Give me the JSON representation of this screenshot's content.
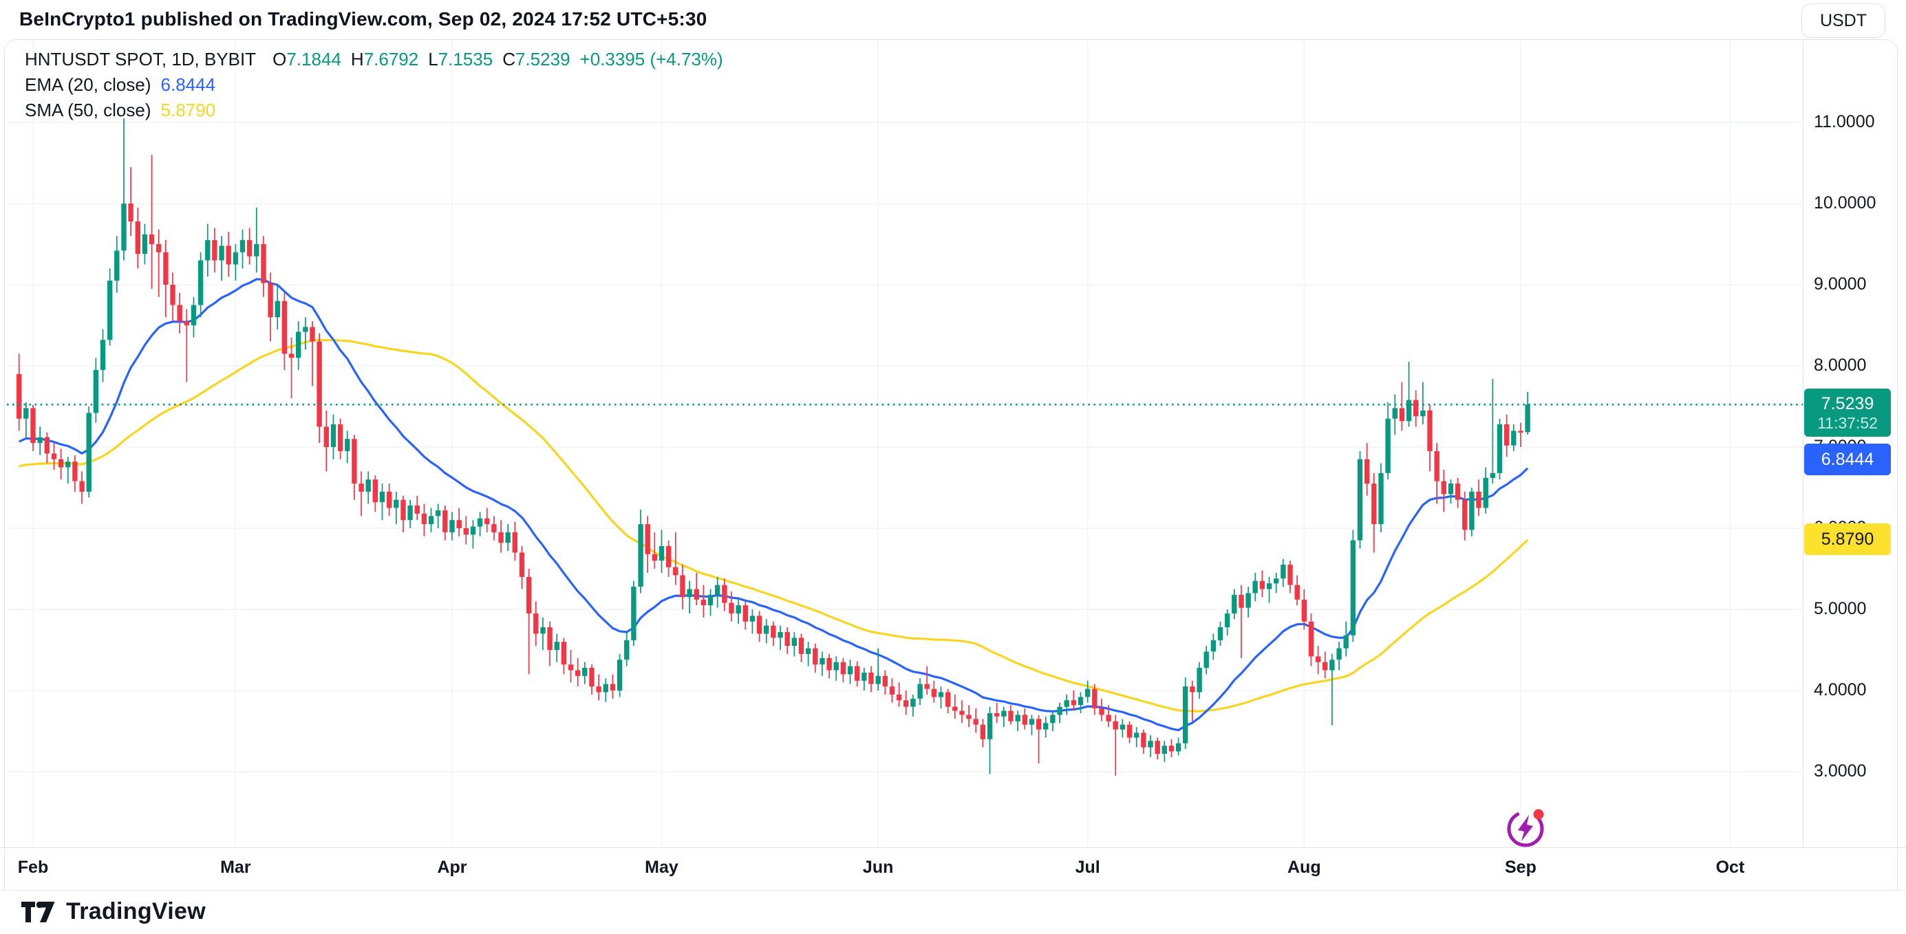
{
  "header": {
    "attribution": "BeInCrypto1 published on TradingView.com, Sep 02, 2024 17:52 UTC+5:30"
  },
  "toolbar": {
    "currency_label": "USDT"
  },
  "legend": {
    "symbol_title": "HNTUSDT SPOT, 1D, BYBIT",
    "ohlc": {
      "open_label": "O",
      "open": "7.1844",
      "high_label": "H",
      "high": "7.6792",
      "low_label": "L",
      "low": "7.1535",
      "close_label": "C",
      "close": "7.5239",
      "change": "+0.3395 (+4.73%)"
    },
    "ema": {
      "label": "EMA (20, close)",
      "value": "6.8444"
    },
    "sma": {
      "label": "SMA (50, close)",
      "value": "5.8790"
    }
  },
  "price_axis": {
    "tags": {
      "current": {
        "price": 7.5239,
        "price_text": "7.5239",
        "countdown": "11:37:52"
      },
      "ema": {
        "price": 6.8444,
        "value": "6.8444"
      },
      "sma": {
        "price": 5.879,
        "value": "5.8790"
      }
    }
  },
  "footer": {
    "brand": "TradingView"
  },
  "colors": {
    "up": "#089981",
    "down": "#f23645",
    "ema": "#2962ff",
    "sma": "#f8d521",
    "tag_sma_bg": "#fde12d",
    "tag_sma_text": "#131722",
    "accent_marker": "#a21caf",
    "marker_dot": "#f23645",
    "text": "#131722"
  },
  "chart_data": {
    "type": "candlestick",
    "symbol": "HNTUSDT",
    "market": "SPOT",
    "interval": "1D",
    "exchange": "BYBIT",
    "title": "HNTUSDT SPOT, 1D, BYBIT",
    "legend_position": "top-left",
    "grid": true,
    "ylim": [
      2.3,
      11.35
    ],
    "current_price": 7.5239,
    "countdown": "11:37:52",
    "last_candle": {
      "open": 7.1844,
      "high": 7.6792,
      "low": 7.1535,
      "close": 7.5239,
      "change": 0.3395,
      "change_pct": 4.73
    },
    "overlays": [
      {
        "name": "EMA (20, close)",
        "kind": "ema",
        "period": 20,
        "last_value": 6.8444
      },
      {
        "name": "SMA (50, close)",
        "kind": "sma",
        "period": 50,
        "last_value": 5.879
      }
    ],
    "y_ticks": [
      {
        "label": "11.0000",
        "price": 11
      },
      {
        "label": "10.0000",
        "price": 10
      },
      {
        "label": "9.0000",
        "price": 9
      },
      {
        "label": "8.0000",
        "price": 8
      },
      {
        "label": "7.0000",
        "price": 7
      },
      {
        "label": "6.0000",
        "price": 6
      },
      {
        "label": "5.0000",
        "price": 5
      },
      {
        "label": "4.0000",
        "price": 4
      },
      {
        "label": "3.0000",
        "price": 3
      }
    ],
    "x_ticks": [
      {
        "label": "Feb",
        "day": 2
      },
      {
        "label": "Mar",
        "day": 31
      },
      {
        "label": "Apr",
        "day": 62
      },
      {
        "label": "May",
        "day": 92
      },
      {
        "label": "Jun",
        "day": 123
      },
      {
        "label": "Jul",
        "day": 153
      },
      {
        "label": "Aug",
        "day": 184
      },
      {
        "label": "Sep",
        "day": 215
      },
      {
        "label": "Oct",
        "day": 245
      }
    ],
    "candles_note": "daily OHLC, first candle Jan 30 2024, last candle Sep 02 2024",
    "candles": [
      [
        7.9,
        8.15,
        7.2,
        7.35
      ],
      [
        7.35,
        7.55,
        7.1,
        7.48
      ],
      [
        7.48,
        7.52,
        6.95,
        7.05
      ],
      [
        7.05,
        7.25,
        6.9,
        7.12
      ],
      [
        7.12,
        7.18,
        6.8,
        6.92
      ],
      [
        6.92,
        7.05,
        6.72,
        6.85
      ],
      [
        6.85,
        6.98,
        6.6,
        6.75
      ],
      [
        6.75,
        6.88,
        6.55,
        6.82
      ],
      [
        6.82,
        6.9,
        6.45,
        6.58
      ],
      [
        6.58,
        6.7,
        6.3,
        6.45
      ],
      [
        6.45,
        7.5,
        6.38,
        7.42
      ],
      [
        7.42,
        8.1,
        7.3,
        7.95
      ],
      [
        7.95,
        8.45,
        7.8,
        8.32
      ],
      [
        8.32,
        9.2,
        8.25,
        9.05
      ],
      [
        9.05,
        9.6,
        8.9,
        9.42
      ],
      [
        9.42,
        11.05,
        9.3,
        10.0
      ],
      [
        10.0,
        10.45,
        9.6,
        9.78
      ],
      [
        9.78,
        9.95,
        9.2,
        9.38
      ],
      [
        9.38,
        9.75,
        9.25,
        9.62
      ],
      [
        9.62,
        10.6,
        8.95,
        9.5
      ],
      [
        9.5,
        9.68,
        8.85,
        9.4
      ],
      [
        9.4,
        9.55,
        8.6,
        9.0
      ],
      [
        9.0,
        9.15,
        8.55,
        8.75
      ],
      [
        8.75,
        8.9,
        8.4,
        8.55
      ],
      [
        8.55,
        8.7,
        7.8,
        8.5
      ],
      [
        8.5,
        8.85,
        8.35,
        8.75
      ],
      [
        8.75,
        9.4,
        8.6,
        9.3
      ],
      [
        9.3,
        9.75,
        9.1,
        9.55
      ],
      [
        9.55,
        9.7,
        9.15,
        9.3
      ],
      [
        9.3,
        9.6,
        9.05,
        9.48
      ],
      [
        9.48,
        9.65,
        9.1,
        9.25
      ],
      [
        9.25,
        9.5,
        9.05,
        9.4
      ],
      [
        9.4,
        9.68,
        9.2,
        9.55
      ],
      [
        9.55,
        9.7,
        9.25,
        9.35
      ],
      [
        9.35,
        9.95,
        9.15,
        9.5
      ],
      [
        9.5,
        9.6,
        8.85,
        9.02
      ],
      [
        9.02,
        9.15,
        8.3,
        8.6
      ],
      [
        8.6,
        9.0,
        8.45,
        8.8
      ],
      [
        8.8,
        8.9,
        7.95,
        8.15
      ],
      [
        8.15,
        8.35,
        7.6,
        8.1
      ],
      [
        8.1,
        8.55,
        7.95,
        8.42
      ],
      [
        8.42,
        8.6,
        8.2,
        8.48
      ],
      [
        8.48,
        8.55,
        7.75,
        8.3
      ],
      [
        8.3,
        8.4,
        7.05,
        7.25
      ],
      [
        7.25,
        7.45,
        6.7,
        7.0
      ],
      [
        7.0,
        7.4,
        6.85,
        7.28
      ],
      [
        7.28,
        7.35,
        6.85,
        6.95
      ],
      [
        6.95,
        7.2,
        6.8,
        7.1
      ],
      [
        7.1,
        7.15,
        6.35,
        6.55
      ],
      [
        6.55,
        6.7,
        6.15,
        6.45
      ],
      [
        6.45,
        6.7,
        6.3,
        6.6
      ],
      [
        6.6,
        6.65,
        6.2,
        6.32
      ],
      [
        6.32,
        6.55,
        6.1,
        6.45
      ],
      [
        6.45,
        6.55,
        6.15,
        6.25
      ],
      [
        6.25,
        6.45,
        6.05,
        6.35
      ],
      [
        6.35,
        6.4,
        5.95,
        6.1
      ],
      [
        6.1,
        6.35,
        6.0,
        6.28
      ],
      [
        6.28,
        6.4,
        6.1,
        6.18
      ],
      [
        6.18,
        6.3,
        5.9,
        6.05
      ],
      [
        6.05,
        6.25,
        5.95,
        6.15
      ],
      [
        6.15,
        6.3,
        6.0,
        6.22
      ],
      [
        6.22,
        6.28,
        5.85,
        5.95
      ],
      [
        5.95,
        6.2,
        5.85,
        6.1
      ],
      [
        6.1,
        6.25,
        5.9,
        6.0
      ],
      [
        6.0,
        6.15,
        5.8,
        5.92
      ],
      [
        5.92,
        6.1,
        5.75,
        6.02
      ],
      [
        6.02,
        6.2,
        5.9,
        6.12
      ],
      [
        6.12,
        6.25,
        5.95,
        6.05
      ],
      [
        6.05,
        6.15,
        5.85,
        5.95
      ],
      [
        5.95,
        6.1,
        5.7,
        5.82
      ],
      [
        5.82,
        6.05,
        5.72,
        5.95
      ],
      [
        5.95,
        6.08,
        5.6,
        5.7
      ],
      [
        5.7,
        5.78,
        5.25,
        5.4
      ],
      [
        5.4,
        5.5,
        4.2,
        4.95
      ],
      [
        4.95,
        5.1,
        4.55,
        4.7
      ],
      [
        4.7,
        4.9,
        4.5,
        4.78
      ],
      [
        4.78,
        4.85,
        4.3,
        4.5
      ],
      [
        4.5,
        4.7,
        4.35,
        4.6
      ],
      [
        4.6,
        4.65,
        4.2,
        4.32
      ],
      [
        4.32,
        4.5,
        4.1,
        4.25
      ],
      [
        4.25,
        4.4,
        4.05,
        4.18
      ],
      [
        4.18,
        4.35,
        4.08,
        4.28
      ],
      [
        4.28,
        4.32,
        3.95,
        4.05
      ],
      [
        4.05,
        4.2,
        3.88,
        3.98
      ],
      [
        3.98,
        4.15,
        3.86,
        4.08
      ],
      [
        4.08,
        4.2,
        3.9,
        4.0
      ],
      [
        4.0,
        4.45,
        3.92,
        4.38
      ],
      [
        4.38,
        4.72,
        4.3,
        4.62
      ],
      [
        4.62,
        5.35,
        4.55,
        5.28
      ],
      [
        5.28,
        6.23,
        5.2,
        6.05
      ],
      [
        6.05,
        6.15,
        5.45,
        5.68
      ],
      [
        5.68,
        5.95,
        5.5,
        5.6
      ],
      [
        5.6,
        5.98,
        5.45,
        5.78
      ],
      [
        5.78,
        5.85,
        5.4,
        5.52
      ],
      [
        5.52,
        5.95,
        5.3,
        5.42
      ],
      [
        5.42,
        5.55,
        5.0,
        5.15
      ],
      [
        5.15,
        5.35,
        4.95,
        5.25
      ],
      [
        5.25,
        5.45,
        5.05,
        5.12
      ],
      [
        5.12,
        5.3,
        4.9,
        5.05
      ],
      [
        5.05,
        5.25,
        4.92,
        5.18
      ],
      [
        5.18,
        5.4,
        5.02,
        5.3
      ],
      [
        5.3,
        5.38,
        4.98,
        5.08
      ],
      [
        5.08,
        5.22,
        4.85,
        4.95
      ],
      [
        4.95,
        5.15,
        4.82,
        5.05
      ],
      [
        5.05,
        5.1,
        4.75,
        4.85
      ],
      [
        4.85,
        5.0,
        4.7,
        4.92
      ],
      [
        4.92,
        4.98,
        4.6,
        4.7
      ],
      [
        4.7,
        4.88,
        4.58,
        4.8
      ],
      [
        4.8,
        4.85,
        4.55,
        4.65
      ],
      [
        4.65,
        4.8,
        4.5,
        4.72
      ],
      [
        4.72,
        4.78,
        4.45,
        4.55
      ],
      [
        4.55,
        4.72,
        4.42,
        4.65
      ],
      [
        4.65,
        4.7,
        4.35,
        4.45
      ],
      [
        4.45,
        4.6,
        4.3,
        4.52
      ],
      [
        4.52,
        4.58,
        4.22,
        4.32
      ],
      [
        4.32,
        4.48,
        4.18,
        4.4
      ],
      [
        4.4,
        4.45,
        4.15,
        4.25
      ],
      [
        4.25,
        4.42,
        4.12,
        4.35
      ],
      [
        4.35,
        4.4,
        4.1,
        4.2
      ],
      [
        4.2,
        4.38,
        4.08,
        4.3
      ],
      [
        4.3,
        4.36,
        4.05,
        4.12
      ],
      [
        4.12,
        4.28,
        4.0,
        4.22
      ],
      [
        4.22,
        4.3,
        3.98,
        4.08
      ],
      [
        4.08,
        4.52,
        4.0,
        4.18
      ],
      [
        4.18,
        4.25,
        3.95,
        4.05
      ],
      [
        4.05,
        4.15,
        3.85,
        3.95
      ],
      [
        3.95,
        4.1,
        3.8,
        3.88
      ],
      [
        3.88,
        4.0,
        3.7,
        3.8
      ],
      [
        3.8,
        3.95,
        3.68,
        3.9
      ],
      [
        3.9,
        4.15,
        3.82,
        4.08
      ],
      [
        4.08,
        4.3,
        3.95,
        4.02
      ],
      [
        4.02,
        4.12,
        3.85,
        3.92
      ],
      [
        3.92,
        4.05,
        3.78,
        3.98
      ],
      [
        3.98,
        4.02,
        3.72,
        3.8
      ],
      [
        3.8,
        3.95,
        3.65,
        3.75
      ],
      [
        3.75,
        3.88,
        3.6,
        3.7
      ],
      [
        3.7,
        3.82,
        3.55,
        3.65
      ],
      [
        3.65,
        3.78,
        3.48,
        3.58
      ],
      [
        3.58,
        3.65,
        3.3,
        3.4
      ],
      [
        3.4,
        3.8,
        2.97,
        3.72
      ],
      [
        3.72,
        3.85,
        3.6,
        3.68
      ],
      [
        3.68,
        3.8,
        3.55,
        3.75
      ],
      [
        3.75,
        3.82,
        3.58,
        3.62
      ],
      [
        3.62,
        3.75,
        3.5,
        3.7
      ],
      [
        3.7,
        3.78,
        3.52,
        3.58
      ],
      [
        3.58,
        3.7,
        3.45,
        3.65
      ],
      [
        3.65,
        3.7,
        3.1,
        3.52
      ],
      [
        3.52,
        3.68,
        3.42,
        3.6
      ],
      [
        3.6,
        3.75,
        3.5,
        3.7
      ],
      [
        3.7,
        3.85,
        3.6,
        3.8
      ],
      [
        3.8,
        3.95,
        3.7,
        3.88
      ],
      [
        3.88,
        4.0,
        3.75,
        3.82
      ],
      [
        3.82,
        3.98,
        3.72,
        3.92
      ],
      [
        3.92,
        4.12,
        3.85,
        4.02
      ],
      [
        4.02,
        4.08,
        3.7,
        3.78
      ],
      [
        3.78,
        3.9,
        3.62,
        3.7
      ],
      [
        3.7,
        3.82,
        3.55,
        3.62
      ],
      [
        3.62,
        3.7,
        2.95,
        3.52
      ],
      [
        3.52,
        3.65,
        3.42,
        3.58
      ],
      [
        3.58,
        3.62,
        3.35,
        3.42
      ],
      [
        3.42,
        3.55,
        3.3,
        3.48
      ],
      [
        3.48,
        3.52,
        3.22,
        3.3
      ],
      [
        3.3,
        3.45,
        3.18,
        3.38
      ],
      [
        3.38,
        3.42,
        3.15,
        3.22
      ],
      [
        3.22,
        3.38,
        3.12,
        3.32
      ],
      [
        3.32,
        3.4,
        3.18,
        3.25
      ],
      [
        3.25,
        3.42,
        3.2,
        3.35
      ],
      [
        3.35,
        4.16,
        3.28,
        4.05
      ],
      [
        4.05,
        4.12,
        3.62,
        3.98
      ],
      [
        3.98,
        4.35,
        3.9,
        4.28
      ],
      [
        4.28,
        4.55,
        4.2,
        4.48
      ],
      [
        4.48,
        4.7,
        4.38,
        4.62
      ],
      [
        4.62,
        4.85,
        4.55,
        4.78
      ],
      [
        4.78,
        5.0,
        4.68,
        4.95
      ],
      [
        4.95,
        5.25,
        4.88,
        5.18
      ],
      [
        5.18,
        5.3,
        4.4,
        5.02
      ],
      [
        5.02,
        5.28,
        4.9,
        5.2
      ],
      [
        5.2,
        5.45,
        5.1,
        5.35
      ],
      [
        5.35,
        5.48,
        5.15,
        5.25
      ],
      [
        5.25,
        5.4,
        5.08,
        5.32
      ],
      [
        5.32,
        5.45,
        5.2,
        5.38
      ],
      [
        5.38,
        5.62,
        5.28,
        5.55
      ],
      [
        5.55,
        5.6,
        5.2,
        5.3
      ],
      [
        5.3,
        5.42,
        5.05,
        5.12
      ],
      [
        5.12,
        5.25,
        4.75,
        4.85
      ],
      [
        4.85,
        4.95,
        4.3,
        4.42
      ],
      [
        4.42,
        4.55,
        4.2,
        4.35
      ],
      [
        4.35,
        4.48,
        4.15,
        4.25
      ],
      [
        4.25,
        4.45,
        3.57,
        4.38
      ],
      [
        4.38,
        4.6,
        4.25,
        4.52
      ],
      [
        4.52,
        4.85,
        4.42,
        4.68
      ],
      [
        4.68,
        5.98,
        4.6,
        5.85
      ],
      [
        5.85,
        6.95,
        5.75,
        6.85
      ],
      [
        6.85,
        7.05,
        6.4,
        6.55
      ],
      [
        6.55,
        6.68,
        5.7,
        6.05
      ],
      [
        6.05,
        6.8,
        5.95,
        6.68
      ],
      [
        6.68,
        7.55,
        6.6,
        7.35
      ],
      [
        7.35,
        7.65,
        7.15,
        7.48
      ],
      [
        7.48,
        7.8,
        7.2,
        7.32
      ],
      [
        7.32,
        8.05,
        7.25,
        7.58
      ],
      [
        7.58,
        7.7,
        7.25,
        7.38
      ],
      [
        7.38,
        7.8,
        7.28,
        7.45
      ],
      [
        7.45,
        7.52,
        6.7,
        6.95
      ],
      [
        6.95,
        7.05,
        6.3,
        6.58
      ],
      [
        6.58,
        6.72,
        6.2,
        6.42
      ],
      [
        6.42,
        6.6,
        6.3,
        6.55
      ],
      [
        6.55,
        6.62,
        6.25,
        6.35
      ],
      [
        6.35,
        6.45,
        5.85,
        5.98
      ],
      [
        5.98,
        6.5,
        5.9,
        6.45
      ],
      [
        6.45,
        6.6,
        6.15,
        6.25
      ],
      [
        6.25,
        6.75,
        6.18,
        6.62
      ],
      [
        6.62,
        7.84,
        6.55,
        6.68
      ],
      [
        6.68,
        7.35,
        6.6,
        7.28
      ],
      [
        7.28,
        7.4,
        6.88,
        7.02
      ],
      [
        7.02,
        7.28,
        6.95,
        7.2
      ],
      [
        7.2,
        7.3,
        7.0,
        7.18
      ],
      [
        7.1844,
        7.6792,
        7.1535,
        7.5239
      ]
    ]
  }
}
